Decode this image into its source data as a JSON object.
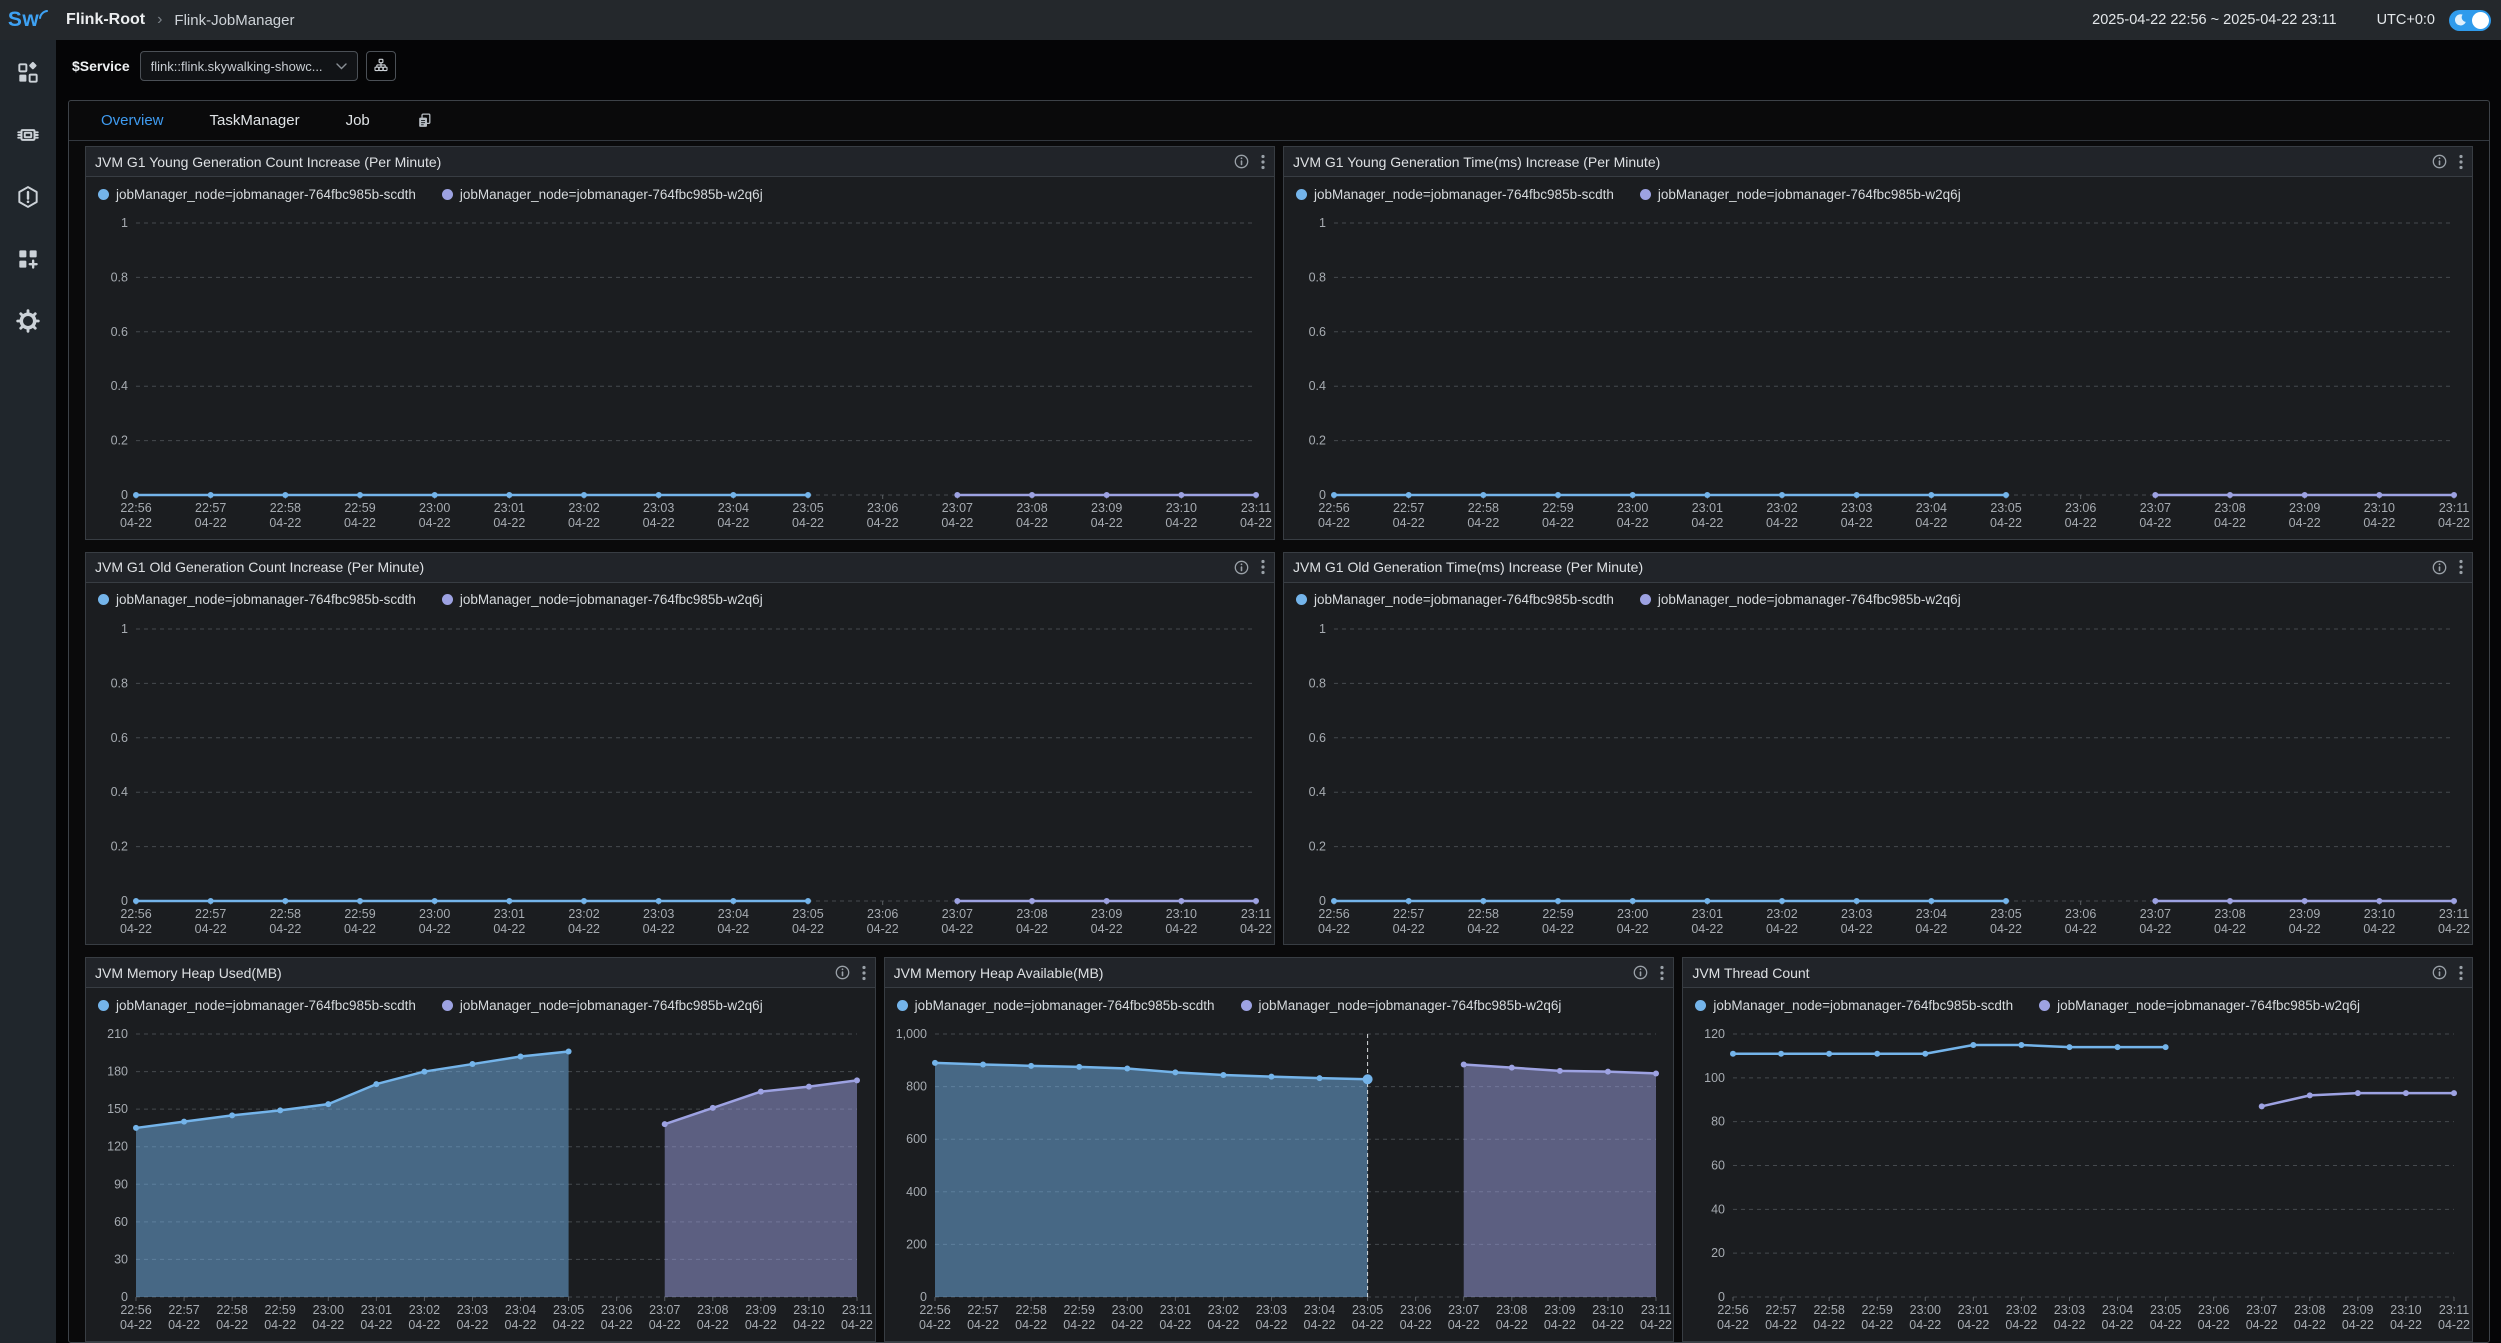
{
  "header": {
    "logo": "Sw",
    "breadcrumb": {
      "root": "Flink-Root",
      "separator": "›",
      "current": "Flink-JobManager"
    },
    "time_range": "2025-04-22 22:56 ~ 2025-04-22 23:11",
    "timezone": "UTC+0:0"
  },
  "service_bar": {
    "label": "$Service",
    "selected_service": "flink::flink.skywalking-showc..."
  },
  "sidebar": {
    "items": [
      {
        "name": "marketplace"
      },
      {
        "name": "infrastructure"
      },
      {
        "name": "alerting"
      },
      {
        "name": "dashboards"
      },
      {
        "name": "settings"
      }
    ]
  },
  "tabs": {
    "items": [
      {
        "label": "Overview",
        "active": true
      },
      {
        "label": "TaskManager",
        "active": false
      },
      {
        "label": "Job",
        "active": false
      }
    ]
  },
  "legend": [
    "jobManager_node=jobmanager-764fbc985b-scdth",
    "jobManager_node=jobmanager-764fbc985b-w2q6j"
  ],
  "colors": {
    "series": [
      "#74b4ea",
      "#9da2e2"
    ],
    "series_fill_alpha": 0.5,
    "accent": "#3f9bf0",
    "grid": "#45494e",
    "axis_text": "#a6abb1",
    "crosshair": "#d8dbde"
  },
  "x_times": [
    "22:56",
    "22:57",
    "22:58",
    "22:59",
    "23:00",
    "23:01",
    "23:02",
    "23:03",
    "23:04",
    "23:05",
    "23:06",
    "23:07",
    "23:08",
    "23:09",
    "23:10",
    "23:11"
  ],
  "x_date": "04-22",
  "chart_data": [
    {
      "type": "line",
      "row": 1,
      "title": "JVM G1 Young Generation Count Increase (Per Minute)",
      "ylim": [
        0,
        1
      ],
      "area": false,
      "yticks": [
        [
          0,
          "0"
        ],
        [
          0.2,
          "0.2"
        ],
        [
          0.4,
          "0.4"
        ],
        [
          0.6,
          "0.6"
        ],
        [
          0.8,
          "0.8"
        ],
        [
          1,
          "1"
        ]
      ],
      "series": [
        {
          "name": "jobManager_node=jobmanager-764fbc985b-scdth",
          "x_start": 0,
          "values": [
            0,
            0,
            0,
            0,
            0,
            0,
            0,
            0,
            0,
            0
          ]
        },
        {
          "name": "jobManager_node=jobmanager-764fbc985b-w2q6j",
          "x_start": 11,
          "values": [
            0,
            0,
            0,
            0,
            0
          ]
        }
      ]
    },
    {
      "type": "line",
      "row": 1,
      "title": "JVM G1 Young Generation Time(ms) Increase (Per Minute)",
      "ylim": [
        0,
        1
      ],
      "area": false,
      "yticks": [
        [
          0,
          "0"
        ],
        [
          0.2,
          "0.2"
        ],
        [
          0.4,
          "0.4"
        ],
        [
          0.6,
          "0.6"
        ],
        [
          0.8,
          "0.8"
        ],
        [
          1,
          "1"
        ]
      ],
      "series": [
        {
          "name": "jobManager_node=jobmanager-764fbc985b-scdth",
          "x_start": 0,
          "values": [
            0,
            0,
            0,
            0,
            0,
            0,
            0,
            0,
            0,
            0
          ]
        },
        {
          "name": "jobManager_node=jobmanager-764fbc985b-w2q6j",
          "x_start": 11,
          "values": [
            0,
            0,
            0,
            0,
            0
          ]
        }
      ]
    },
    {
      "type": "line",
      "row": 2,
      "title": "JVM G1 Old Generation Count Increase (Per Minute)",
      "ylim": [
        0,
        1
      ],
      "area": false,
      "yticks": [
        [
          0,
          "0"
        ],
        [
          0.2,
          "0.2"
        ],
        [
          0.4,
          "0.4"
        ],
        [
          0.6,
          "0.6"
        ],
        [
          0.8,
          "0.8"
        ],
        [
          1,
          "1"
        ]
      ],
      "series": [
        {
          "name": "jobManager_node=jobmanager-764fbc985b-scdth",
          "x_start": 0,
          "values": [
            0,
            0,
            0,
            0,
            0,
            0,
            0,
            0,
            0,
            0
          ]
        },
        {
          "name": "jobManager_node=jobmanager-764fbc985b-w2q6j",
          "x_start": 11,
          "values": [
            0,
            0,
            0,
            0,
            0
          ]
        }
      ]
    },
    {
      "type": "line",
      "row": 2,
      "title": "JVM G1 Old Generation Time(ms) Increase (Per Minute)",
      "ylim": [
        0,
        1
      ],
      "area": false,
      "yticks": [
        [
          0,
          "0"
        ],
        [
          0.2,
          "0.2"
        ],
        [
          0.4,
          "0.4"
        ],
        [
          0.6,
          "0.6"
        ],
        [
          0.8,
          "0.8"
        ],
        [
          1,
          "1"
        ]
      ],
      "series": [
        {
          "name": "jobManager_node=jobmanager-764fbc985b-scdth",
          "x_start": 0,
          "values": [
            0,
            0,
            0,
            0,
            0,
            0,
            0,
            0,
            0,
            0
          ]
        },
        {
          "name": "jobManager_node=jobmanager-764fbc985b-w2q6j",
          "x_start": 11,
          "values": [
            0,
            0,
            0,
            0,
            0
          ]
        }
      ]
    },
    {
      "type": "area",
      "row": 3,
      "title": "JVM Memory Heap Used(MB)",
      "ylim": [
        0,
        210
      ],
      "area": true,
      "yticks": [
        [
          0,
          "0"
        ],
        [
          30,
          "30"
        ],
        [
          60,
          "60"
        ],
        [
          90,
          "90"
        ],
        [
          120,
          "120"
        ],
        [
          150,
          "150"
        ],
        [
          180,
          "180"
        ],
        [
          210,
          "210"
        ]
      ],
      "series": [
        {
          "name": "jobManager_node=jobmanager-764fbc985b-scdth",
          "x_start": 0,
          "values": [
            135,
            140,
            145,
            149,
            154,
            170,
            180,
            186,
            192,
            196
          ]
        },
        {
          "name": "jobManager_node=jobmanager-764fbc985b-w2q6j",
          "x_start": 11,
          "values": [
            138,
            151,
            164,
            168,
            173
          ]
        }
      ]
    },
    {
      "type": "area",
      "row": 3,
      "title": "JVM Memory Heap Available(MB)",
      "ylim": [
        0,
        1000
      ],
      "area": true,
      "crosshair_index": 9,
      "yticks": [
        [
          0,
          "0"
        ],
        [
          200,
          "200"
        ],
        [
          400,
          "400"
        ],
        [
          600,
          "600"
        ],
        [
          800,
          "800"
        ],
        [
          1000,
          "1,000"
        ]
      ],
      "series": [
        {
          "name": "jobManager_node=jobmanager-764fbc985b-scdth",
          "x_start": 0,
          "values": [
            890,
            884,
            879,
            875,
            869,
            854,
            844,
            838,
            832,
            828
          ]
        },
        {
          "name": "jobManager_node=jobmanager-764fbc985b-w2q6j",
          "x_start": 11,
          "values": [
            884,
            872,
            860,
            857,
            850
          ]
        }
      ]
    },
    {
      "type": "line",
      "row": 3,
      "title": "JVM Thread Count",
      "ylim": [
        0,
        120
      ],
      "area": false,
      "yticks": [
        [
          0,
          "0"
        ],
        [
          20,
          "20"
        ],
        [
          40,
          "40"
        ],
        [
          60,
          "60"
        ],
        [
          80,
          "80"
        ],
        [
          100,
          "100"
        ],
        [
          120,
          "120"
        ]
      ],
      "series": [
        {
          "name": "jobManager_node=jobmanager-764fbc985b-scdth",
          "x_start": 0,
          "values": [
            111,
            111,
            111,
            111,
            111,
            115,
            115,
            114,
            114,
            114
          ]
        },
        {
          "name": "jobManager_node=jobmanager-764fbc985b-w2q6j",
          "x_start": 11,
          "values": [
            87,
            92,
            93,
            93,
            93
          ]
        }
      ]
    }
  ]
}
